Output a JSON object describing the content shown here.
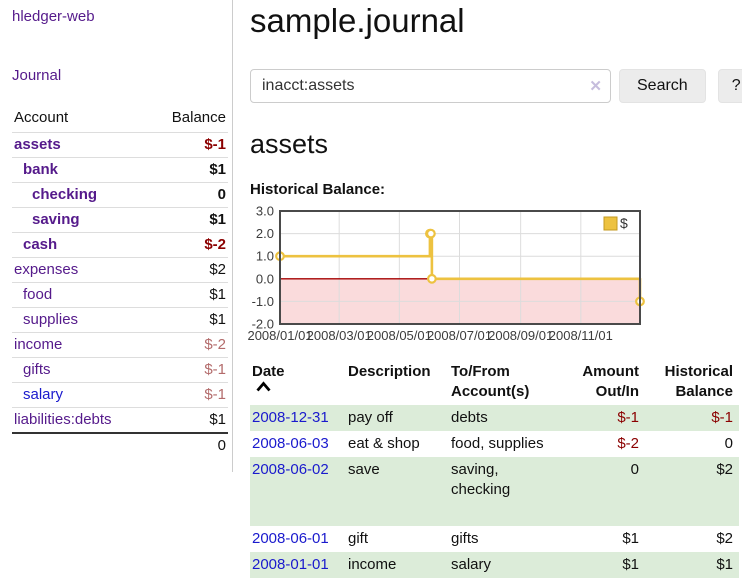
{
  "sidebar": {
    "brand": "hledger-web",
    "journal_link": "Journal",
    "accounts_table": {
      "headers": [
        "Account",
        "Balance"
      ],
      "rows": [
        {
          "name": "assets",
          "level": 1,
          "bold": true,
          "balance": "$-1",
          "balance_style": "neg"
        },
        {
          "name": "bank",
          "level": 2,
          "bold": true,
          "balance": "$1",
          "balance_style": "pos"
        },
        {
          "name": "checking",
          "level": 3,
          "bold": true,
          "balance": "0",
          "balance_style": "pos"
        },
        {
          "name": "saving",
          "level": 3,
          "bold": true,
          "balance": "$1",
          "balance_style": "pos"
        },
        {
          "name": "cash",
          "level": 2,
          "bold": true,
          "balance": "$-2",
          "balance_style": "neg"
        },
        {
          "name": "expenses",
          "level": 1,
          "bold": false,
          "balance": "$2",
          "balance_style": "pos"
        },
        {
          "name": "food",
          "level": 2,
          "bold": false,
          "balance": "$1",
          "balance_style": "pos"
        },
        {
          "name": "supplies",
          "level": 2,
          "bold": false,
          "balance": "$1",
          "balance_style": "pos"
        },
        {
          "name": "income",
          "level": 1,
          "bold": false,
          "balance": "$-2",
          "balance_style": "neg-muted"
        },
        {
          "name": "gifts",
          "level": 2,
          "bold": false,
          "balance": "$-1",
          "balance_style": "neg-muted"
        },
        {
          "name": "salary",
          "level": 2,
          "bold": false,
          "balance": "$-1",
          "balance_style": "neg-muted",
          "link_style": "blue"
        },
        {
          "name": "liabilities:debts",
          "level": 1,
          "bold": false,
          "balance": "$1",
          "balance_style": "pos"
        }
      ],
      "total": "0"
    }
  },
  "header": {
    "title": "sample.journal"
  },
  "search": {
    "value": "inacct:assets",
    "clear_icon": "✕",
    "button_label": "Search",
    "help_label": "?"
  },
  "account_page": {
    "heading": "assets",
    "chart_title": "Historical Balance:"
  },
  "chart_data": {
    "type": "line",
    "step": true,
    "title": "Historical Balance:",
    "ylim": [
      -2,
      3
    ],
    "x_range": [
      "2008-01-01",
      "2008-12-31"
    ],
    "y_ticks": [
      {
        "value": 3,
        "label": "3.0"
      },
      {
        "value": 2,
        "label": "2.0"
      },
      {
        "value": 1,
        "label": "1.0"
      },
      {
        "value": 0,
        "label": "0.0"
      },
      {
        "value": -1,
        "label": "-1.0"
      },
      {
        "value": -2,
        "label": "-2.0"
      }
    ],
    "x_ticks": [
      {
        "date": "2008-01-01",
        "label": "2008/01/01"
      },
      {
        "date": "2008-03-01",
        "label": "2008/03/01"
      },
      {
        "date": "2008-05-01",
        "label": "2008/05/01"
      },
      {
        "date": "2008-07-01",
        "label": "2008/07/01"
      },
      {
        "date": "2008-09-01",
        "label": "2008/09/01"
      },
      {
        "date": "2008-11-01",
        "label": "2008/11/01"
      }
    ],
    "series": [
      {
        "name": "$",
        "color": "#edc240",
        "points": [
          {
            "date": "2008-01-01",
            "value": 1
          },
          {
            "date": "2008-06-01",
            "value": 2
          },
          {
            "date": "2008-06-02",
            "value": 2
          },
          {
            "date": "2008-06-03",
            "value": 0
          },
          {
            "date": "2008-12-31",
            "value": -1
          }
        ]
      }
    ],
    "legend": [
      {
        "label": "$",
        "color": "#edc240"
      }
    ],
    "legend_position": "top-right",
    "grid": true,
    "negative_region": {
      "fill": "#fadbdc",
      "zero_line_color": "#a40000"
    },
    "grid_color": "#dcdcdc",
    "frame_color": "#4a4a4a",
    "tick_label_color": "#3c3c3c"
  },
  "register": {
    "columns": [
      {
        "label": "Date",
        "sorted": "asc"
      },
      {
        "label": "Description"
      },
      {
        "label": "To/From Account(s)"
      },
      {
        "label": "Amount Out/In",
        "align": "right"
      },
      {
        "label": "Historical Balance",
        "align": "right"
      }
    ],
    "rows": [
      {
        "date": "2008-12-31",
        "description": "pay off",
        "accounts": "debts",
        "amount": "$-1",
        "amount_style": "neg",
        "balance": "$-1",
        "balance_style": "neg"
      },
      {
        "date": "2008-06-03",
        "description": "eat & shop",
        "accounts": "food, supplies",
        "amount": "$-2",
        "amount_style": "neg",
        "balance": "0",
        "balance_style": "pos"
      },
      {
        "date": "2008-06-02",
        "description": "save",
        "accounts": "saving, checking",
        "amount": "0",
        "amount_style": "pos",
        "balance": "$2",
        "balance_style": "pos",
        "tall": true
      },
      {
        "date": "2008-06-01",
        "description": "gift",
        "accounts": "gifts",
        "amount": "$1",
        "amount_style": "pos",
        "balance": "$2",
        "balance_style": "pos"
      },
      {
        "date": "2008-01-01",
        "description": "income",
        "accounts": "salary",
        "amount": "$1",
        "amount_style": "pos",
        "balance": "$1",
        "balance_style": "pos"
      }
    ]
  },
  "colors": {
    "link_purple": "#551a8b",
    "link_blue": "#1a1acd",
    "negative_strong": "#8b0000",
    "negative_muted": "#b36b6b",
    "row_stripe_green": "#dcecd9",
    "chart_line_gold": "#edc240",
    "chart_negative_pink": "#fadbdc",
    "chart_zero_line": "#a40000"
  }
}
